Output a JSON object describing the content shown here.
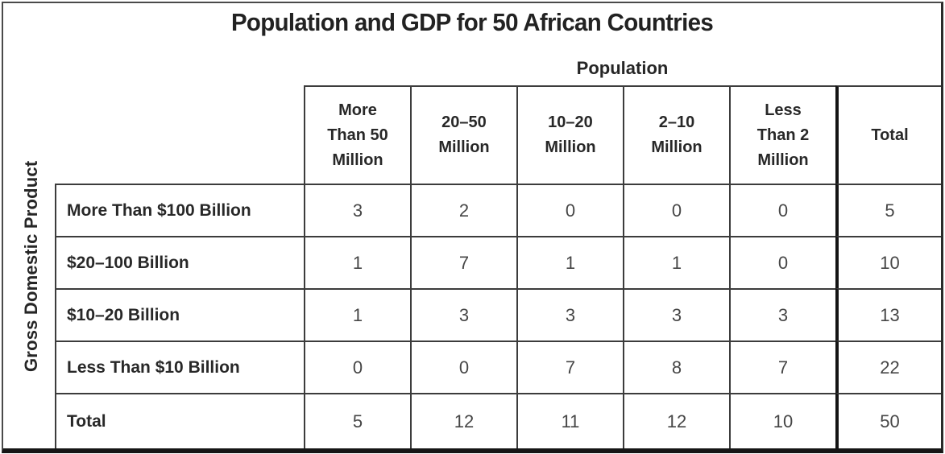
{
  "title": "Population and GDP for 50 African Countries",
  "column_group_label": "Population",
  "row_group_label": "Gross Domestic Product",
  "table": {
    "columns": [
      "More\nThan 50\nMillion",
      "20–50\nMillion",
      "10–20\nMillion",
      "2–10\nMillion",
      "Less\nThan 2\nMillion",
      "Total"
    ],
    "rows": [
      {
        "label": "More Than $100 Billion",
        "values": [
          3,
          2,
          0,
          0,
          0,
          5
        ]
      },
      {
        "label": "$20–100 Billion",
        "values": [
          1,
          7,
          1,
          1,
          0,
          10
        ]
      },
      {
        "label": "$10–20 Billion",
        "values": [
          1,
          3,
          3,
          3,
          3,
          13
        ]
      },
      {
        "label": "Less Than $10 Billion",
        "values": [
          0,
          0,
          7,
          8,
          7,
          22
        ]
      },
      {
        "label": "Total",
        "values": [
          5,
          12,
          11,
          12,
          10,
          50
        ]
      }
    ]
  },
  "chart_data": {
    "type": "table",
    "title": "Population and GDP for 50 African Countries",
    "column_variable": "Population",
    "row_variable": "Gross Domestic Product",
    "columns": [
      "More Than 50 Million",
      "20–50 Million",
      "10–20 Million",
      "2–10 Million",
      "Less Than 2 Million",
      "Total"
    ],
    "rows": [
      "More Than $100 Billion",
      "$20–100 Billion",
      "$10–20 Billion",
      "Less Than $10 Billion",
      "Total"
    ],
    "values": [
      [
        3,
        2,
        0,
        0,
        0,
        5
      ],
      [
        1,
        7,
        1,
        1,
        0,
        10
      ],
      [
        1,
        3,
        3,
        3,
        3,
        13
      ],
      [
        0,
        0,
        7,
        8,
        7,
        22
      ],
      [
        5,
        12,
        11,
        12,
        10,
        50
      ]
    ],
    "grand_total": 50,
    "colors": {
      "grid_line": "#3c3c3c",
      "heavy_rule": "#141414",
      "text": "#282828",
      "background": "#ffffff"
    }
  }
}
